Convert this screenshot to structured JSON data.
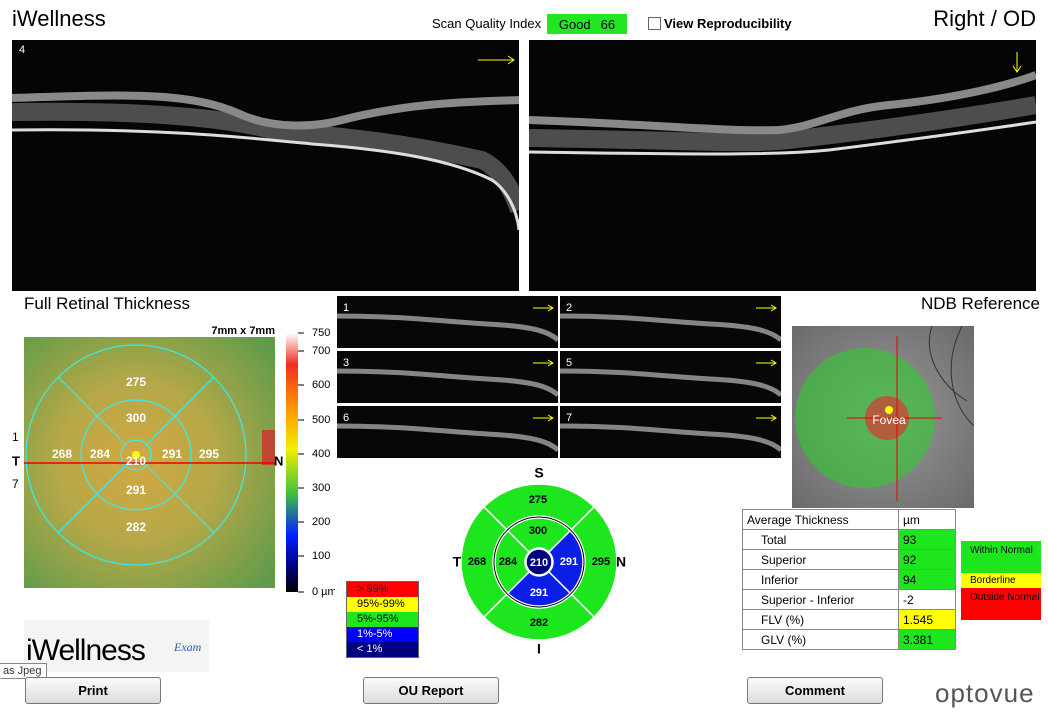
{
  "header": {
    "app_title": "iWellness",
    "scan_quality_label": "Scan Quality Index",
    "scan_quality_rating": "Good",
    "scan_quality_value": 66,
    "reproducibility_label": "View Reproducibility",
    "eye": "Right / OD"
  },
  "bscan": {
    "label": 4
  },
  "thickness_map": {
    "title": "Full Retinal Thickness",
    "size": "7mm x 7mm",
    "side_labels": {
      "top": 1,
      "temporal": "T",
      "bottom": 7,
      "nasal": "N"
    },
    "sectors": {
      "superior_outer": 275,
      "superior_inner": 300,
      "temporal_outer": 268,
      "temporal_inner": 284,
      "center": 210,
      "nasal_inner": 291,
      "nasal_outer": 295,
      "inferior_inner": 291,
      "inferior_outer": 282
    },
    "scale_ticks": [
      750,
      700,
      600,
      500,
      400,
      300,
      200,
      100,
      "0 µm"
    ]
  },
  "thumbnails": [
    1,
    2,
    3,
    5,
    6,
    7
  ],
  "percentile_legend": [
    "> 99%",
    "95%-99%",
    "5%-95%",
    "1%-5%",
    "< 1%"
  ],
  "sector_chart": {
    "directions": {
      "superior": "S",
      "temporal": "T",
      "nasal": "N",
      "inferior": "I"
    },
    "sectors": {
      "superior_outer": 275,
      "superior_inner": 300,
      "temporal_outer": 268,
      "temporal_inner": 284,
      "center": 210,
      "nasal_inner": 291,
      "nasal_outer": 295,
      "inferior_inner": 291,
      "inferior_outer": 282
    }
  },
  "ndb": {
    "title": "NDB Reference",
    "fovea_label": "Fovea"
  },
  "table": {
    "header": [
      "Average Thickness",
      "µm"
    ],
    "rows": [
      [
        "Total",
        93
      ],
      [
        "Superior",
        92
      ],
      [
        "Inferior",
        94
      ],
      [
        "Superior - Inferior",
        -2
      ],
      [
        "FLV (%)",
        1.545
      ],
      [
        "GLV (%)",
        3.381
      ]
    ]
  },
  "status_legend": [
    "Within Normal",
    "Borderline",
    "Outside Normal"
  ],
  "logo": {
    "name": "iWellness",
    "suffix": "Exam"
  },
  "tooltip": "as Jpeg",
  "buttons": [
    "Print",
    "OU Report",
    "Comment"
  ],
  "brand": "optovue"
}
